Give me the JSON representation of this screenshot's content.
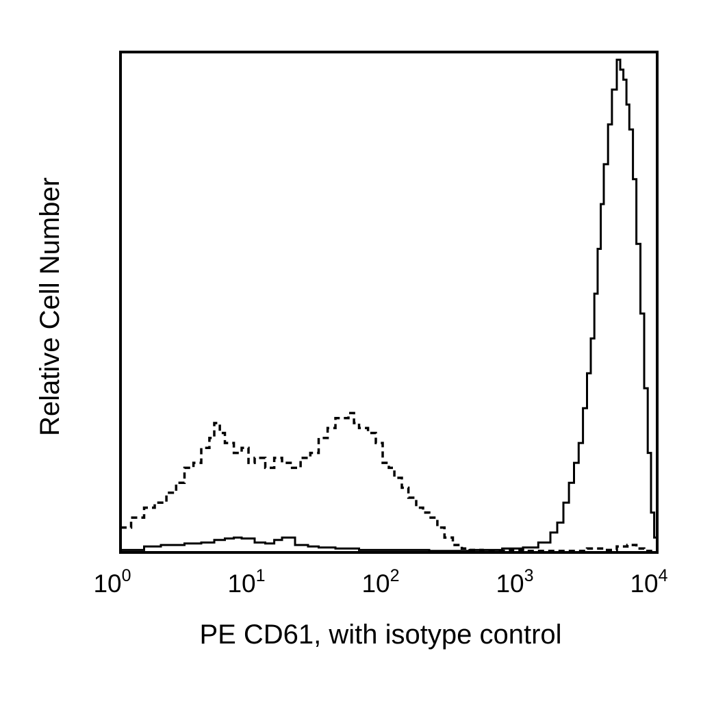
{
  "chart_data": {
    "type": "line",
    "xlabel": "PE CD61, with isotype control",
    "ylabel": "Relative Cell Number",
    "x_scale": "log",
    "xlim": [
      1,
      10000
    ],
    "ylim": [
      0,
      100
    ],
    "x_ticks": [
      {
        "value": 1,
        "base": "10",
        "exp": "0"
      },
      {
        "value": 10,
        "base": "10",
        "exp": "1"
      },
      {
        "value": 100,
        "base": "10",
        "exp": "2"
      },
      {
        "value": 1000,
        "base": "10",
        "exp": "3"
      },
      {
        "value": 10000,
        "base": "10",
        "exp": "4"
      }
    ],
    "grid": false,
    "legend": "none",
    "series": [
      {
        "style": "dashed",
        "x": [
          1.0,
          1.2,
          1.5,
          1.8,
          2.2,
          2.6,
          3.0,
          3.5,
          4.0,
          4.6,
          5.0,
          5.5,
          6.0,
          7.0,
          8.0,
          9.0,
          10,
          12,
          14,
          16,
          19,
          22,
          26,
          30,
          35,
          40,
          45,
          50,
          55,
          60,
          70,
          80,
          90,
          100,
          110,
          125,
          140,
          160,
          180,
          200,
          230,
          260,
          300,
          350,
          400,
          500,
          600,
          800,
          1000,
          2000,
          3000,
          4000,
          5000,
          6000,
          7000,
          8000,
          9000,
          10000
        ],
        "y": [
          5,
          7,
          9,
          10,
          12,
          14,
          17,
          18,
          21,
          23,
          26,
          24,
          22,
          20,
          21,
          18,
          19,
          17,
          19,
          18,
          17,
          19,
          20,
          23,
          25,
          27,
          27,
          28,
          26,
          25,
          24,
          22,
          18,
          17,
          15,
          13,
          11,
          9,
          8,
          7,
          5,
          3,
          1.5,
          0.8,
          0.5,
          0.3,
          0.3,
          0.5,
          0.3,
          0.3,
          0.8,
          0.5,
          1.2,
          1.5,
          0.8,
          0.3,
          0.2,
          0
        ]
      },
      {
        "style": "solid",
        "x": [
          1.0,
          1.5,
          2.0,
          3.0,
          4.0,
          5.0,
          6.0,
          7.0,
          8.0,
          10,
          12,
          14,
          16,
          20,
          25,
          30,
          40,
          60,
          100,
          200,
          400,
          700,
          1000,
          1300,
          1600,
          1800,
          2000,
          2200,
          2400,
          2600,
          2800,
          3000,
          3200,
          3400,
          3600,
          3800,
          4000,
          4300,
          4600,
          5000,
          5300,
          5600,
          5900,
          6200,
          6600,
          7000,
          7500,
          8000,
          8500,
          9000,
          9500,
          10000
        ],
        "y": [
          0.5,
          1.2,
          1.5,
          1.8,
          2.0,
          2.5,
          2.8,
          3.0,
          2.8,
          2.0,
          1.8,
          2.5,
          3.0,
          1.5,
          1.2,
          1.0,
          0.8,
          0.5,
          0.5,
          0.3,
          0.5,
          0.8,
          1.0,
          2.0,
          4.0,
          6.0,
          10,
          14,
          18,
          22,
          29,
          36,
          43,
          52,
          61,
          70,
          78,
          86,
          93,
          99,
          97,
          95,
          90,
          85,
          75,
          62,
          48,
          33,
          20,
          8,
          3,
          0
        ]
      }
    ]
  }
}
